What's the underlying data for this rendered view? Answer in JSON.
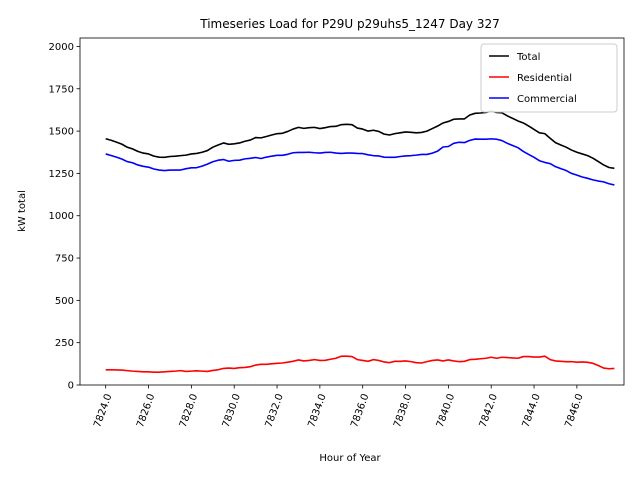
{
  "chart_data": {
    "type": "line",
    "title": "Timeseries Load for P29U p29uhs5_1247  Day 327",
    "xlabel": "Hour of Year",
    "ylabel": "kW total",
    "xlim": [
      7822.8,
      7848.2
    ],
    "ylim": [
      0,
      2050
    ],
    "x_ticks": [
      7824,
      7826,
      7828,
      7830,
      7832,
      7834,
      7836,
      7838,
      7840,
      7842,
      7844,
      7846
    ],
    "x_tick_labels": [
      "7824.0",
      "7826.0",
      "7828.0",
      "7830.0",
      "7832.0",
      "7834.0",
      "7836.0",
      "7838.0",
      "7840.0",
      "7842.0",
      "7844.0",
      "7846.0"
    ],
    "y_ticks": [
      0,
      250,
      500,
      750,
      1000,
      1250,
      1500,
      1750,
      2000
    ],
    "y_tick_labels": [
      "0",
      "250",
      "500",
      "750",
      "1000",
      "1250",
      "1500",
      "1750",
      "2000"
    ],
    "x_tick_label_rotation_deg": 70,
    "grid": false,
    "legend_position": "top-right",
    "x": [
      7824.0,
      7824.25,
      7824.5,
      7824.75,
      7825.0,
      7825.25,
      7825.5,
      7825.75,
      7826.0,
      7826.25,
      7826.5,
      7826.75,
      7827.0,
      7827.25,
      7827.5,
      7827.75,
      7828.0,
      7828.25,
      7828.5,
      7828.75,
      7829.0,
      7829.25,
      7829.5,
      7829.75,
      7830.0,
      7830.25,
      7830.5,
      7830.75,
      7831.0,
      7831.25,
      7831.5,
      7831.75,
      7832.0,
      7832.25,
      7832.5,
      7832.75,
      7833.0,
      7833.25,
      7833.5,
      7833.75,
      7834.0,
      7834.25,
      7834.5,
      7834.75,
      7835.0,
      7835.25,
      7835.5,
      7835.75,
      7836.0,
      7836.25,
      7836.5,
      7836.75,
      7837.0,
      7837.25,
      7837.5,
      7837.75,
      7838.0,
      7838.25,
      7838.5,
      7838.75,
      7839.0,
      7839.25,
      7839.5,
      7839.75,
      7840.0,
      7840.25,
      7840.5,
      7840.75,
      7841.0,
      7841.25,
      7841.5,
      7841.75,
      7842.0,
      7842.25,
      7842.5,
      7842.75,
      7843.0,
      7843.25,
      7843.5,
      7843.75,
      7844.0,
      7844.25,
      7844.5,
      7844.75,
      7845.0,
      7845.25,
      7845.5,
      7845.75,
      7846.0,
      7846.25,
      7846.5,
      7846.75,
      7847.0,
      7847.25,
      7847.5,
      7847.75
    ],
    "series": [
      {
        "name": "Total",
        "color": "#000000",
        "values": [
          1455,
          1446,
          1435,
          1423,
          1405,
          1395,
          1380,
          1370,
          1365,
          1352,
          1346,
          1345,
          1350,
          1352,
          1355,
          1358,
          1365,
          1368,
          1375,
          1385,
          1405,
          1418,
          1430,
          1422,
          1425,
          1430,
          1440,
          1447,
          1462,
          1460,
          1468,
          1477,
          1485,
          1487,
          1498,
          1512,
          1522,
          1516,
          1520,
          1522,
          1515,
          1520,
          1527,
          1528,
          1538,
          1540,
          1538,
          1518,
          1512,
          1500,
          1505,
          1498,
          1482,
          1477,
          1485,
          1490,
          1495,
          1493,
          1490,
          1492,
          1500,
          1515,
          1530,
          1548,
          1557,
          1570,
          1572,
          1572,
          1595,
          1605,
          1607,
          1610,
          1618,
          1610,
          1608,
          1590,
          1575,
          1560,
          1548,
          1530,
          1510,
          1490,
          1485,
          1458,
          1432,
          1418,
          1405,
          1388,
          1375,
          1365,
          1355,
          1340,
          1320,
          1300,
          1285,
          1280
        ]
      },
      {
        "name": "Residential",
        "color": "#ff0000",
        "values": [
          90,
          90,
          89,
          88,
          85,
          82,
          80,
          78,
          78,
          76,
          76,
          78,
          80,
          82,
          85,
          80,
          82,
          84,
          82,
          80,
          86,
          90,
          98,
          100,
          98,
          102,
          104,
          108,
          118,
          122,
          122,
          125,
          128,
          130,
          135,
          140,
          148,
          142,
          145,
          150,
          145,
          146,
          152,
          158,
          170,
          170,
          168,
          150,
          145,
          140,
          150,
          145,
          136,
          132,
          140,
          140,
          142,
          138,
          132,
          130,
          138,
          145,
          148,
          142,
          148,
          142,
          138,
          140,
          150,
          152,
          155,
          158,
          164,
          158,
          164,
          162,
          160,
          158,
          168,
          168,
          165,
          165,
          170,
          150,
          142,
          140,
          138,
          138,
          135,
          136,
          134,
          128,
          115,
          100,
          96,
          98
        ]
      },
      {
        "name": "Commercial",
        "color": "#0000ff",
        "values": [
          1365,
          1356,
          1346,
          1335,
          1320,
          1313,
          1300,
          1292,
          1287,
          1276,
          1270,
          1267,
          1270,
          1270,
          1270,
          1278,
          1283,
          1284,
          1293,
          1305,
          1319,
          1328,
          1332,
          1322,
          1327,
          1328,
          1336,
          1339,
          1344,
          1338,
          1346,
          1352,
          1357,
          1357,
          1363,
          1372,
          1374,
          1374,
          1375,
          1372,
          1370,
          1374,
          1375,
          1370,
          1368,
          1370,
          1370,
          1368,
          1367,
          1360,
          1355,
          1353,
          1346,
          1345,
          1345,
          1350,
          1353,
          1355,
          1358,
          1362,
          1362,
          1370,
          1382,
          1406,
          1409,
          1428,
          1434,
          1432,
          1445,
          1453,
          1452,
          1452,
          1454,
          1452,
          1444,
          1428,
          1415,
          1402,
          1380,
          1362,
          1345,
          1325,
          1315,
          1308,
          1290,
          1278,
          1267,
          1250,
          1240,
          1229,
          1221,
          1212,
          1205,
          1200,
          1189,
          1182
        ]
      }
    ]
  }
}
